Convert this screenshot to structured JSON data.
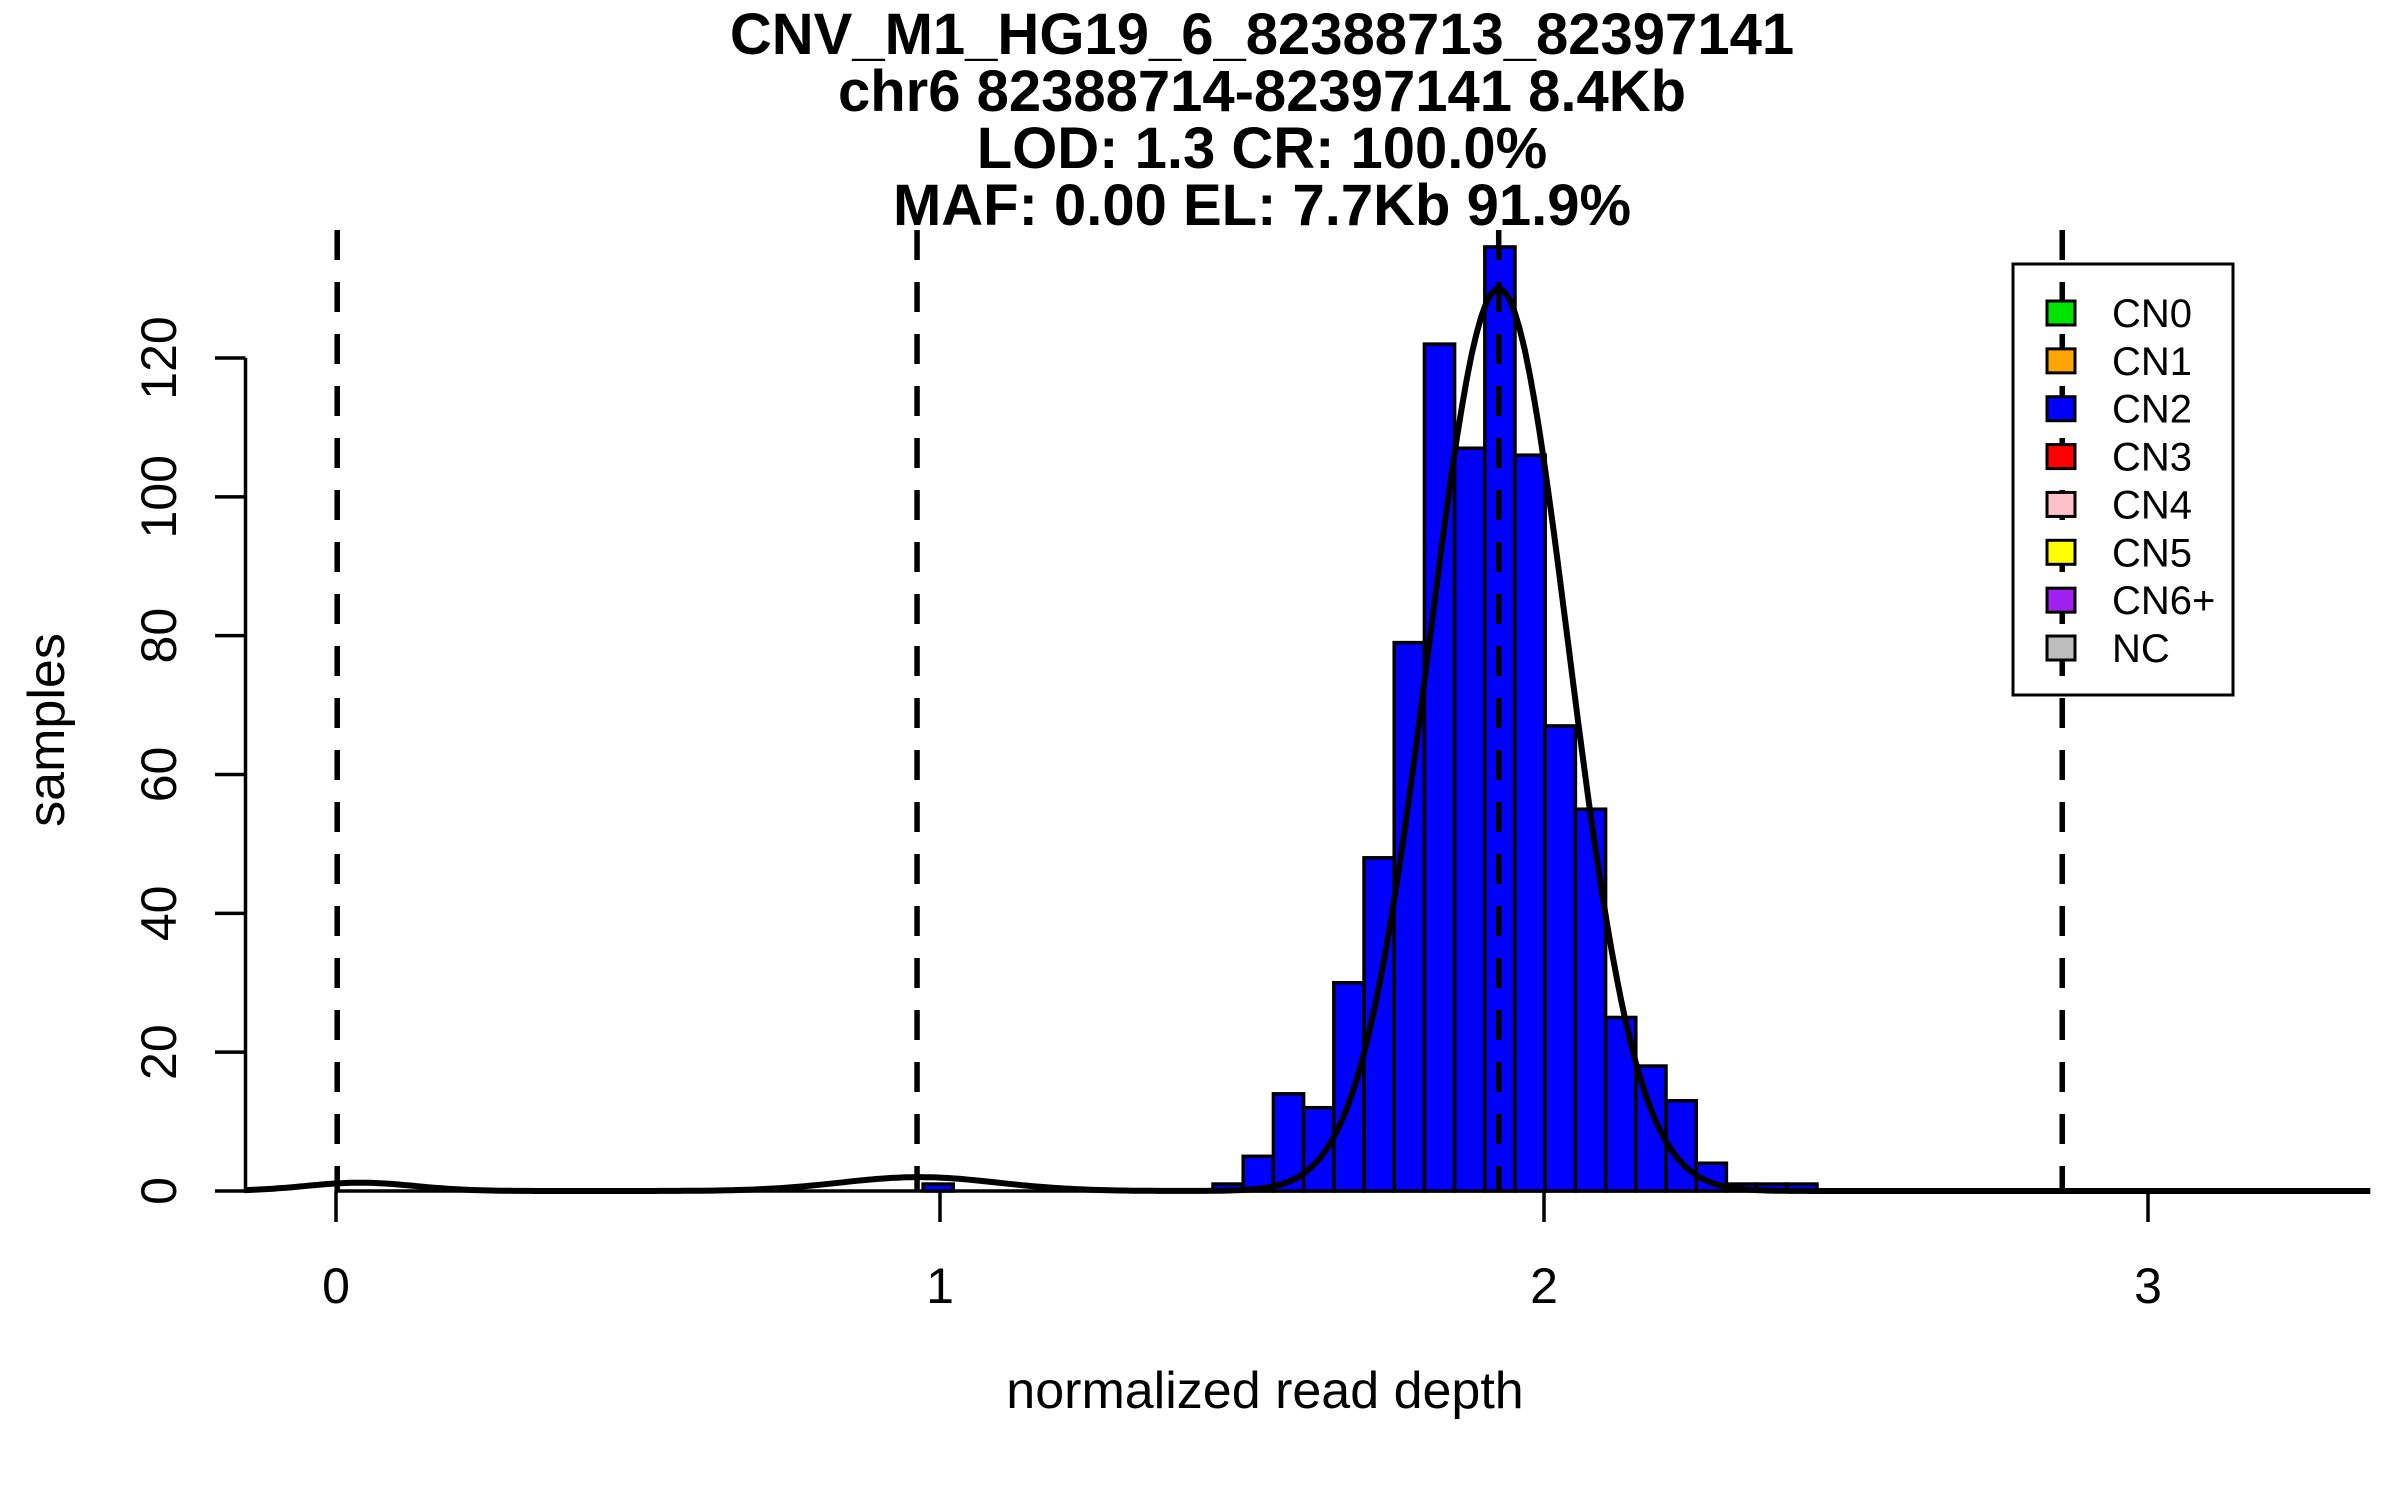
{
  "chart_data": {
    "type": "bar",
    "subtype": "histogram-with-density",
    "title_lines": [
      "CNV_M1_HG19_6_82388713_82397141",
      "chr6 82388714-82397141 8.4Kb",
      "LOD: 1.3 CR: 100.0%",
      "MAF: 0.00 EL: 7.7Kb 91.9%"
    ],
    "xlabel": "normalized read depth",
    "ylabel": "samples",
    "x_ticks": [
      0,
      1,
      2,
      3
    ],
    "y_ticks": [
      0,
      20,
      40,
      60,
      80,
      100,
      120
    ],
    "xlim": [
      -0.152,
      3.372
    ],
    "ylim": [
      0,
      138.4
    ],
    "grid": "off",
    "bin_width": 0.05,
    "bar_fill": "#0000FF",
    "bar_stroke": "#000000",
    "bars": [
      {
        "x": 0.972,
        "count": 1
      },
      {
        "x": 1.452,
        "count": 1
      },
      {
        "x": 1.502,
        "count": 5
      },
      {
        "x": 1.552,
        "count": 14
      },
      {
        "x": 1.602,
        "count": 12
      },
      {
        "x": 1.652,
        "count": 30
      },
      {
        "x": 1.702,
        "count": 48
      },
      {
        "x": 1.752,
        "count": 79
      },
      {
        "x": 1.802,
        "count": 122
      },
      {
        "x": 1.852,
        "count": 107
      },
      {
        "x": 1.902,
        "count": 136
      },
      {
        "x": 1.952,
        "count": 106
      },
      {
        "x": 2.002,
        "count": 67
      },
      {
        "x": 2.052,
        "count": 55
      },
      {
        "x": 2.102,
        "count": 25
      },
      {
        "x": 2.152,
        "count": 18
      },
      {
        "x": 2.202,
        "count": 13
      },
      {
        "x": 2.252,
        "count": 4
      },
      {
        "x": 2.302,
        "count": 1
      },
      {
        "x": 2.352,
        "count": 1
      },
      {
        "x": 2.402,
        "count": 1
      }
    ],
    "density_curve": {
      "color": "#000000",
      "components": [
        {
          "mean": 1.925,
          "sd": 0.115,
          "peak": 130
        },
        {
          "mean": 0.965,
          "sd": 0.13,
          "peak": 2
        },
        {
          "mean": 0.04,
          "sd": 0.09,
          "peak": 1.2
        }
      ]
    },
    "dashed_lines": [
      {
        "state": "CN0",
        "x": 0.002
      },
      {
        "state": "CN1",
        "x": 0.962
      },
      {
        "state": "CN2",
        "x": 1.925
      },
      {
        "state": "CN3",
        "x": 2.858
      }
    ],
    "legend": {
      "position": "top-right",
      "items": [
        {
          "label": "CN0",
          "color": "#00E400"
        },
        {
          "label": "CN1",
          "color": "#FFA500"
        },
        {
          "label": "CN2",
          "color": "#0000FF"
        },
        {
          "label": "CN3",
          "color": "#FF0000"
        },
        {
          "label": "CN4",
          "color": "#FFC0CB"
        },
        {
          "label": "CN5",
          "color": "#FFFF00"
        },
        {
          "label": "CN6+",
          "color": "#A020F0"
        },
        {
          "label": "NC",
          "color": "#BEBEBE"
        }
      ]
    }
  }
}
